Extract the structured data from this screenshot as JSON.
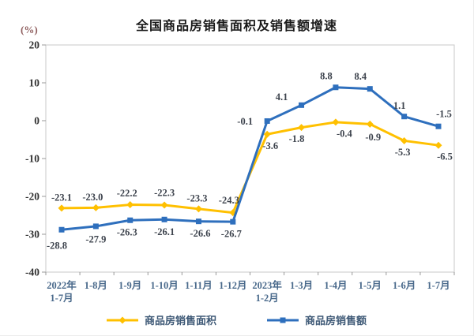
{
  "chart_data": {
    "type": "line",
    "title": "全国商品房销售面积及销售额增速",
    "ylabel": "(%)",
    "xlabel": "",
    "ylim": [
      -40,
      20
    ],
    "ytick_interval": 10,
    "grid": false,
    "legend_position": "bottom",
    "categories": [
      "2022年\n1-7月",
      "1-8月",
      "1-9月",
      "1-10月",
      "1-11月",
      "1-12月",
      "2023年\n1-2月",
      "1-3月",
      "1-4月",
      "1-5月",
      "1-6月",
      "1-7月"
    ],
    "series": [
      {
        "name": "商品房销售面积",
        "color": "#FFC000",
        "marker": "diamond",
        "values": [
          -23.1,
          -23.0,
          -22.2,
          -22.3,
          -23.3,
          -24.3,
          -3.6,
          -1.8,
          -0.4,
          -0.9,
          -5.3,
          -6.5
        ],
        "label_offsets": [
          [
            0,
            -14
          ],
          [
            -4,
            -14
          ],
          [
            -4,
            -15
          ],
          [
            0,
            -16
          ],
          [
            -2,
            -14
          ],
          [
            -5,
            -16
          ],
          [
            4,
            14
          ],
          [
            -6,
            14
          ],
          [
            11,
            14
          ],
          [
            4,
            16
          ],
          [
            -2,
            14
          ],
          [
            8,
            14
          ]
        ]
      },
      {
        "name": "商品房销售额",
        "color": "#2E6FBD",
        "marker": "square",
        "values": [
          -28.8,
          -27.9,
          -26.3,
          -26.1,
          -26.6,
          -26.7,
          -0.1,
          4.1,
          8.8,
          8.4,
          1.1,
          -1.5
        ],
        "label_offsets": [
          [
            -6,
            20
          ],
          [
            0,
            16
          ],
          [
            -4,
            15
          ],
          [
            0,
            15
          ],
          [
            2,
            15
          ],
          [
            -2,
            15
          ],
          [
            -28,
            0
          ],
          [
            -25,
            -11
          ],
          [
            -12,
            -15
          ],
          [
            -12,
            -16
          ],
          [
            -6,
            -14
          ],
          [
            7,
            -16
          ]
        ]
      }
    ]
  },
  "style": {
    "plot_border_color": "#c8c8c8",
    "tick_color": "#999999",
    "background": "#ffffff"
  }
}
